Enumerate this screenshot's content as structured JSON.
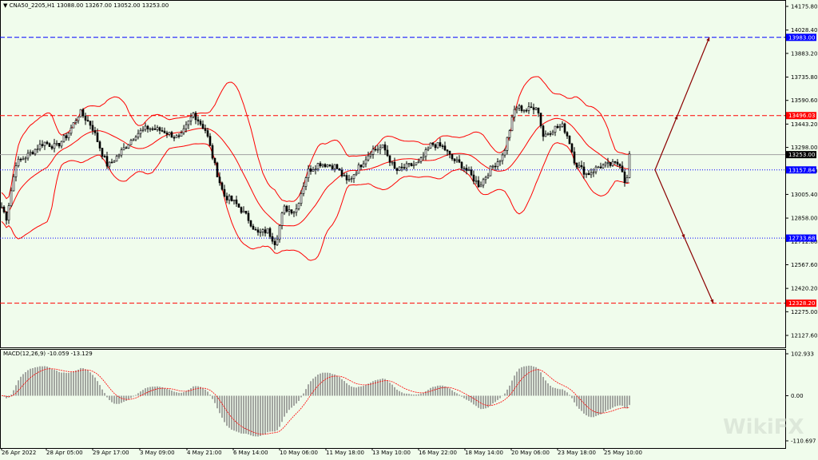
{
  "header": {
    "symbol": "CNA50_2205,H1",
    "ohlc": "13088.00 13267.00 13052.00 13253.00"
  },
  "macd_header": {
    "label": "MACD(12,26,9) -10.059 -13.129"
  },
  "watermark": "WikiFX",
  "colors": {
    "bg": "#f0fcec",
    "band": "#ff0000",
    "candle": "#000000",
    "macd_hist": "#808080",
    "macd_signal": "#ff0000",
    "arrow": "#8b0000",
    "blue_line": "#0000ff",
    "red_line": "#ff0000"
  },
  "chart_data": [
    {
      "type": "candlestick",
      "ylim": [
        12127.6,
        14175.8
      ],
      "y_ticks": [
        "14175.80",
        "14028.40",
        "13883.20",
        "13735.80",
        "13590.60",
        "13443.20",
        "13298.00",
        "13150.60",
        "13005.40",
        "12858.00",
        "12712.80",
        "12567.60",
        "12420.20",
        "12275.00",
        "12127.60"
      ],
      "x_ticks": [
        "26 Apr 2022",
        "28 Apr 05:00",
        "29 Apr 17:00",
        "3 May 09:00",
        "4 May 21:00",
        "6 May 14:00",
        "10 May 06:00",
        "11 May 18:00",
        "13 May 10:00",
        "16 May 22:00",
        "18 May 14:00",
        "20 May 06:00",
        "23 May 18:00",
        "25 May 10:00"
      ],
      "price_labels": [
        {
          "value": "13983.00",
          "color": "#0000ff"
        },
        {
          "value": "13496.03",
          "color": "#ff0000"
        },
        {
          "value": "13253.00",
          "color": "#000000"
        },
        {
          "value": "13157.84",
          "color": "#0000ff"
        },
        {
          "value": "12733.68",
          "color": "#0000ff"
        },
        {
          "value": "12328.20",
          "color": "#ff0000"
        }
      ],
      "levels": [
        {
          "price": 13983.0,
          "color": "#0000ff",
          "style": "dashed"
        },
        {
          "price": 13496.03,
          "color": "#ff0000",
          "style": "dashed"
        },
        {
          "price": 13253.0,
          "color": "#a0a0a0",
          "style": "solid"
        },
        {
          "price": 13157.84,
          "color": "#0000ff",
          "style": "dotted"
        },
        {
          "price": 12733.68,
          "color": "#0000ff",
          "style": "dotted"
        },
        {
          "price": 12328.2,
          "color": "#ff0000",
          "style": "dashed"
        }
      ],
      "indicators": [
        "Bollinger Bands"
      ],
      "anchors_close": [
        [
          0,
          12950
        ],
        [
          8,
          12860
        ],
        [
          20,
          13200
        ],
        [
          35,
          13250
        ],
        [
          55,
          13330
        ],
        [
          70,
          13300
        ],
        [
          85,
          13380
        ],
        [
          100,
          13520
        ],
        [
          115,
          13430
        ],
        [
          128,
          13260
        ],
        [
          135,
          13180
        ],
        [
          150,
          13260
        ],
        [
          170,
          13380
        ],
        [
          185,
          13420
        ],
        [
          205,
          13400
        ],
        [
          225,
          13350
        ],
        [
          242,
          13510
        ],
        [
          258,
          13400
        ],
        [
          268,
          13200
        ],
        [
          280,
          13000
        ],
        [
          295,
          12950
        ],
        [
          310,
          12860
        ],
        [
          322,
          12760
        ],
        [
          335,
          12780
        ],
        [
          345,
          12700
        ],
        [
          355,
          12920
        ],
        [
          370,
          12900
        ],
        [
          385,
          13150
        ],
        [
          400,
          13200
        ],
        [
          420,
          13180
        ],
        [
          435,
          13080
        ],
        [
          450,
          13180
        ],
        [
          465,
          13280
        ],
        [
          480,
          13300
        ],
        [
          495,
          13150
        ],
        [
          510,
          13180
        ],
        [
          525,
          13200
        ],
        [
          540,
          13320
        ],
        [
          555,
          13300
        ],
        [
          565,
          13230
        ],
        [
          580,
          13180
        ],
        [
          600,
          13060
        ],
        [
          615,
          13170
        ],
        [
          630,
          13250
        ],
        [
          645,
          13550
        ],
        [
          660,
          13530
        ],
        [
          672,
          13560
        ],
        [
          680,
          13370
        ],
        [
          695,
          13420
        ],
        [
          705,
          13430
        ],
        [
          712,
          13350
        ],
        [
          720,
          13200
        ],
        [
          735,
          13130
        ],
        [
          750,
          13180
        ],
        [
          765,
          13190
        ],
        [
          777,
          13200
        ],
        [
          784,
          13050
        ],
        [
          788,
          13253
        ]
      ],
      "macd_ylim": [
        -110.697,
        102.933
      ],
      "macd_ticks": [
        "102.933",
        "0.00",
        "-110.697"
      ],
      "arrows": [
        {
          "from": [
            820,
            13157.84
          ],
          "via": [
            848,
            13496.03
          ],
          "to": [
            888,
            13983.0
          ]
        },
        {
          "from": [
            820,
            13157.84
          ],
          "via": [
            857,
            12733.68
          ],
          "to": [
            893,
            12328.2
          ]
        }
      ]
    }
  ]
}
